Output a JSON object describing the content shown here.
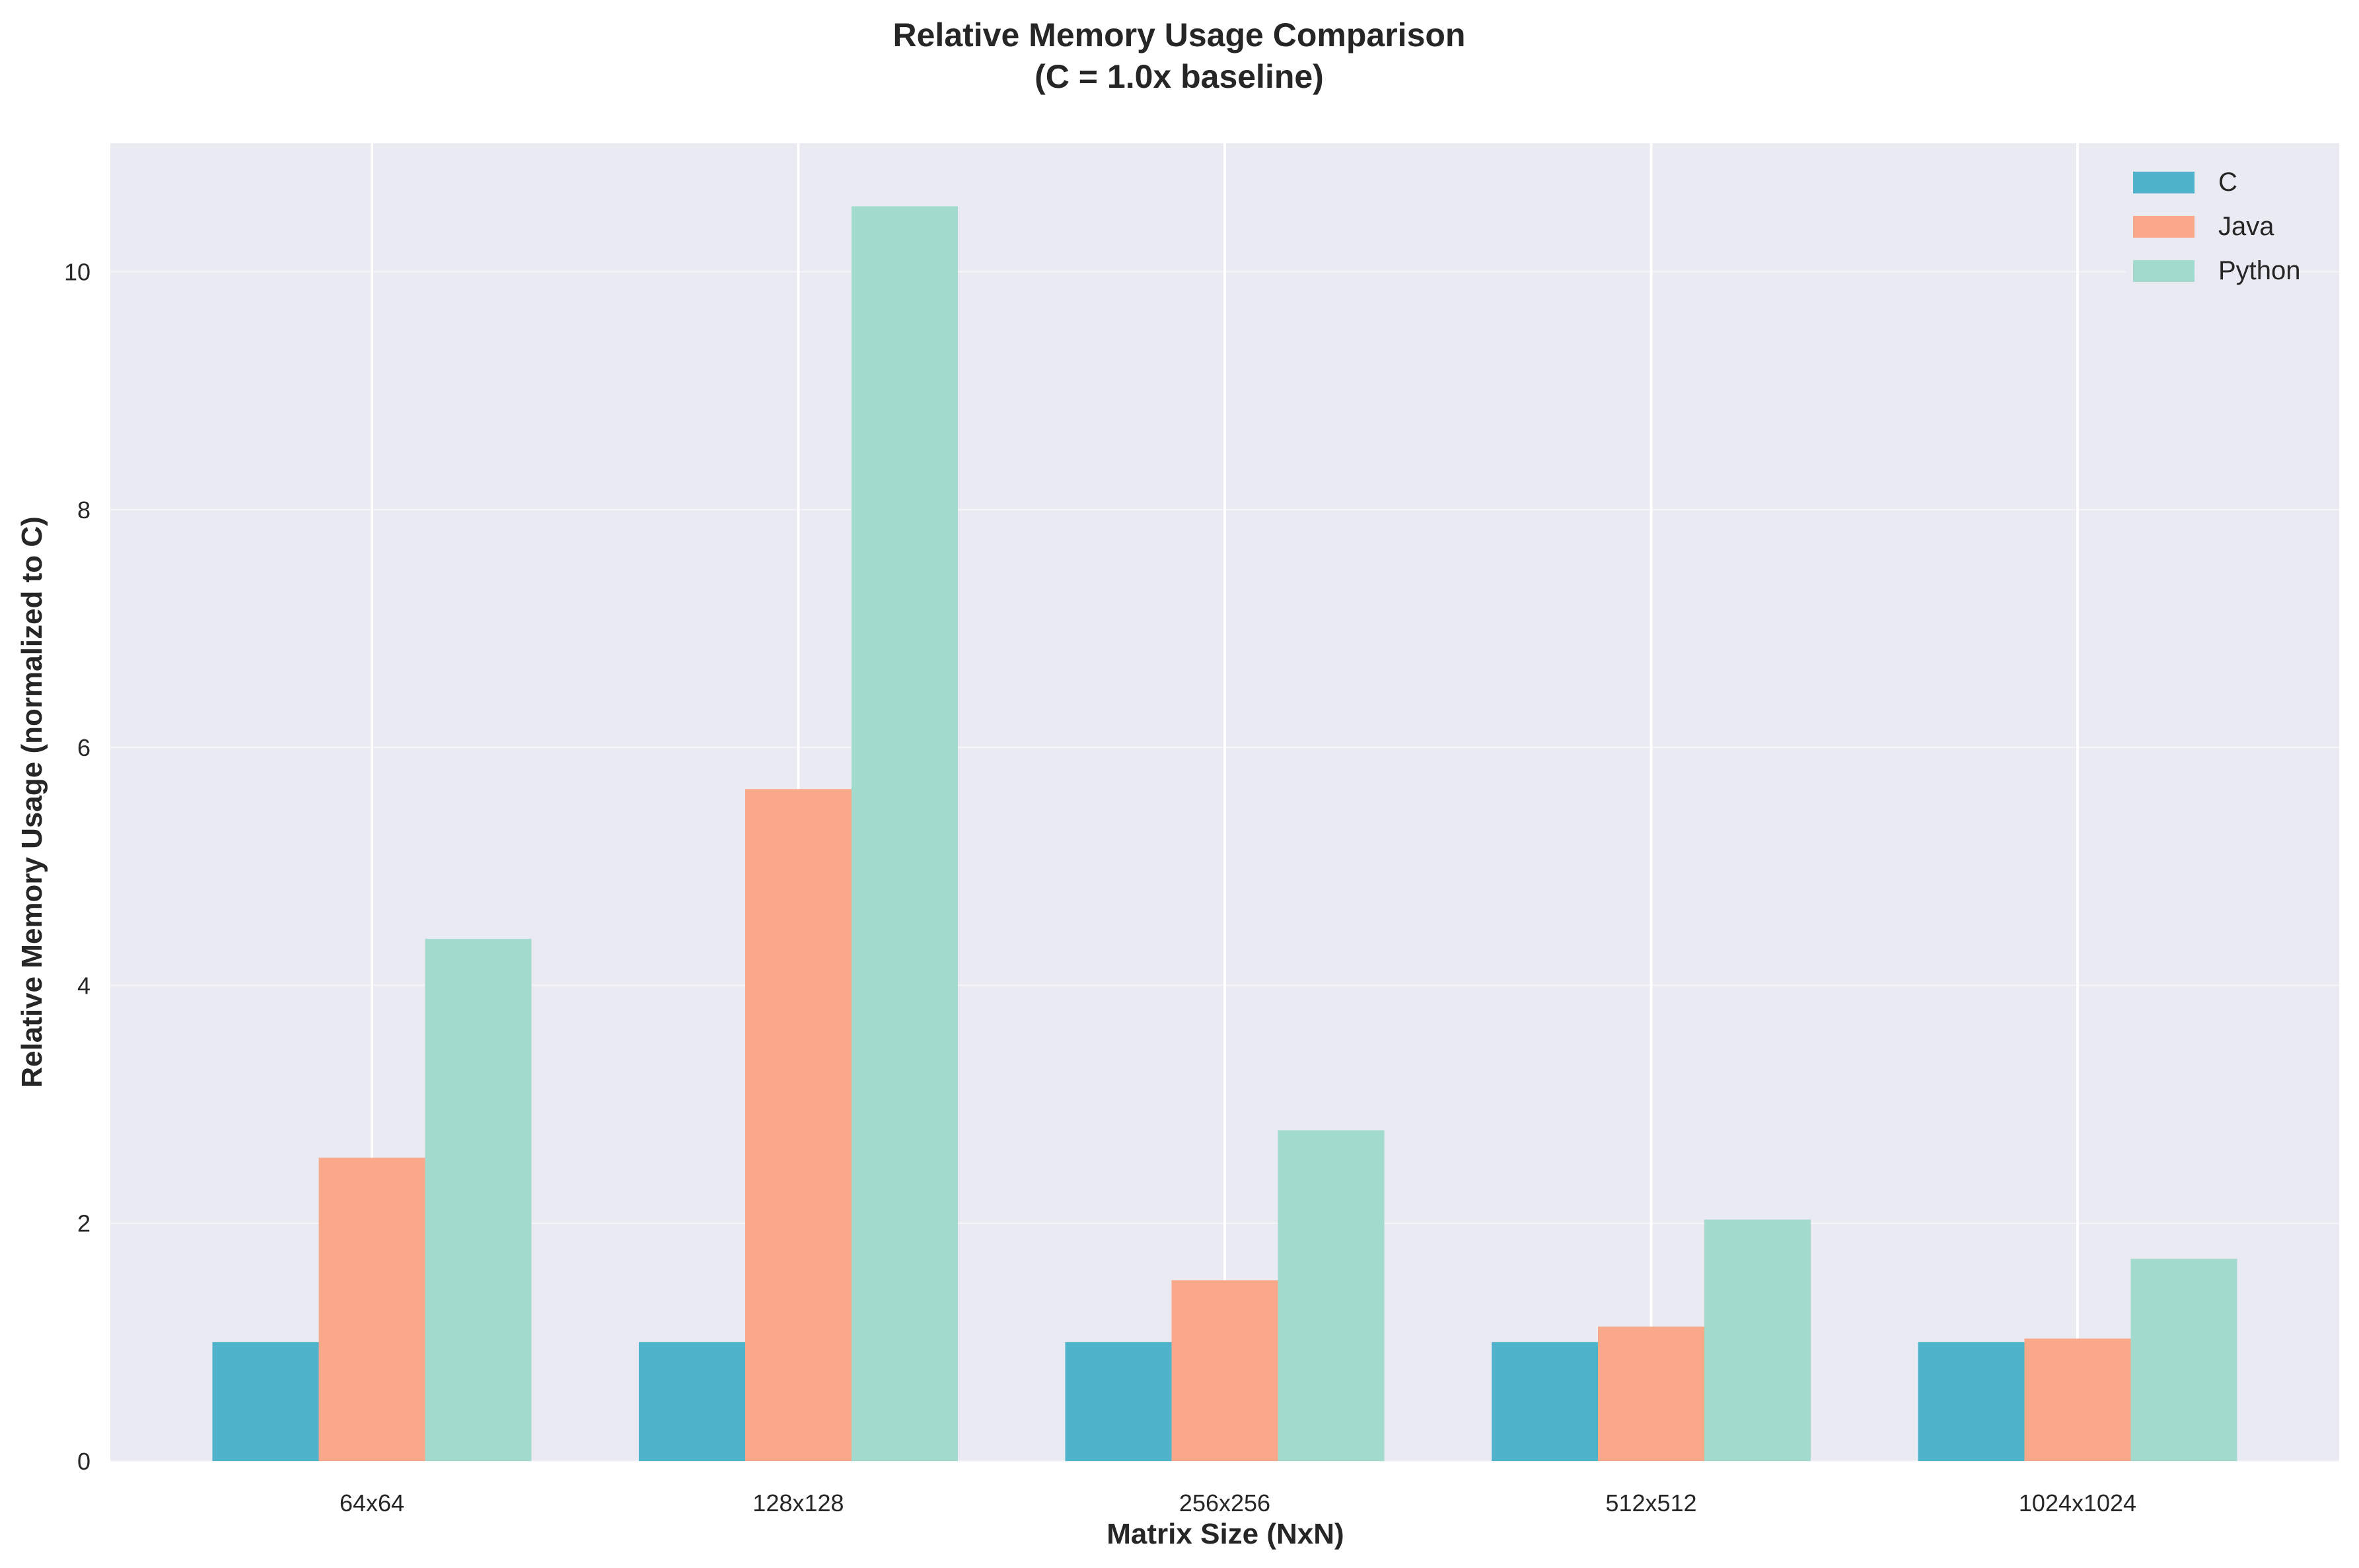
{
  "chart_data": {
    "type": "bar",
    "title": "Relative Memory Usage Comparison",
    "subtitle": "(C = 1.0x baseline)",
    "xlabel": "Matrix Size (NxN)",
    "ylabel": "Relative Memory Usage (normalized to C)",
    "categories": [
      "64x64",
      "128x128",
      "256x256",
      "512x512",
      "1024x1024"
    ],
    "series": [
      {
        "name": "C",
        "color": "#4fb3cc",
        "values": [
          1.0,
          1.0,
          1.0,
          1.0,
          1.0
        ]
      },
      {
        "name": "Java",
        "color": "#f9a98a",
        "values": [
          2.55,
          5.65,
          1.52,
          1.13,
          1.03
        ]
      },
      {
        "name": "Python",
        "color": "#a2dbcd",
        "values": [
          4.39,
          10.55,
          2.78,
          2.03,
          1.7
        ]
      }
    ],
    "ylim": [
      0,
      11.08
    ],
    "yticks": [
      "0",
      "2",
      "4",
      "6",
      "8",
      "10"
    ],
    "grid": true,
    "legend_position": "top-right",
    "plot_background": "#eaeaf2"
  }
}
